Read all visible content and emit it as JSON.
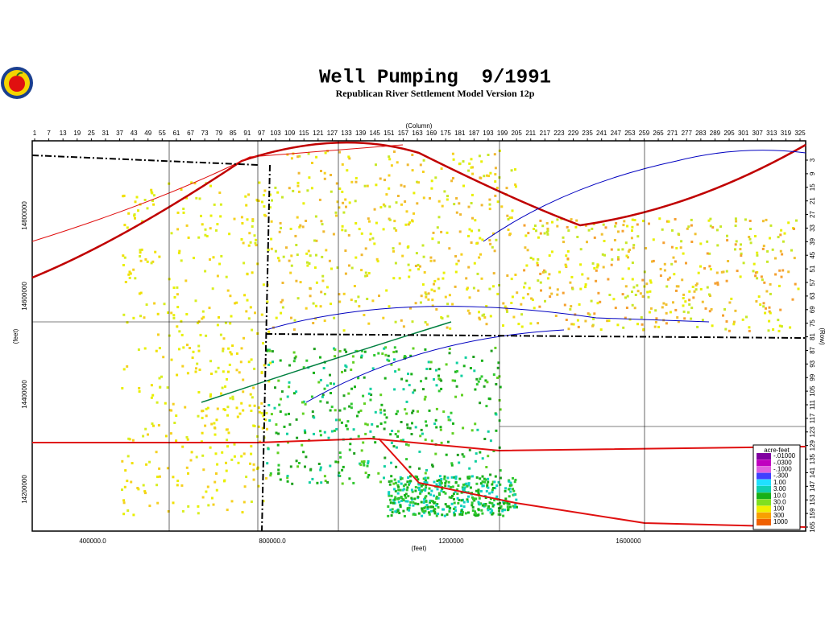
{
  "header": {
    "title": "Well Pumping  9/1991",
    "subtitle": "Republican River Settlement Model Version 12p"
  },
  "top_axis": {
    "label": "(Column)",
    "ticks": [
      1,
      7,
      13,
      19,
      25,
      31,
      37,
      43,
      49,
      55,
      61,
      67,
      73,
      79,
      85,
      91,
      97,
      103,
      109,
      115,
      121,
      127,
      133,
      139,
      145,
      151,
      157,
      163,
      169,
      175,
      181,
      187,
      193,
      199,
      205,
      211,
      217,
      223,
      229,
      235,
      241,
      247,
      253,
      259,
      265,
      271,
      277,
      283,
      289,
      295,
      301,
      307,
      313,
      319,
      325
    ]
  },
  "right_axis": {
    "label": "(Row)",
    "ticks": [
      3,
      9,
      15,
      21,
      27,
      33,
      39,
      45,
      51,
      57,
      63,
      69,
      75,
      81,
      87,
      93,
      99,
      105,
      111,
      117,
      123,
      129,
      135,
      141,
      147,
      153,
      159,
      165
    ]
  },
  "bottom_axis": {
    "label": "(feet)",
    "ticks": [
      "400000.0",
      "800000.0",
      "1200000",
      "1600000"
    ]
  },
  "left_axis": {
    "label": "(feet)",
    "ticks": [
      "14800000",
      "14600000",
      "14400000",
      "14200000"
    ]
  },
  "legend": {
    "title": "acre-feet",
    "entries": [
      "-.01000",
      "-.0300",
      "-.1000",
      "-.300",
      "1.00",
      "3.00",
      "10.0",
      "30.0",
      "100",
      "300",
      "1000"
    ]
  }
}
